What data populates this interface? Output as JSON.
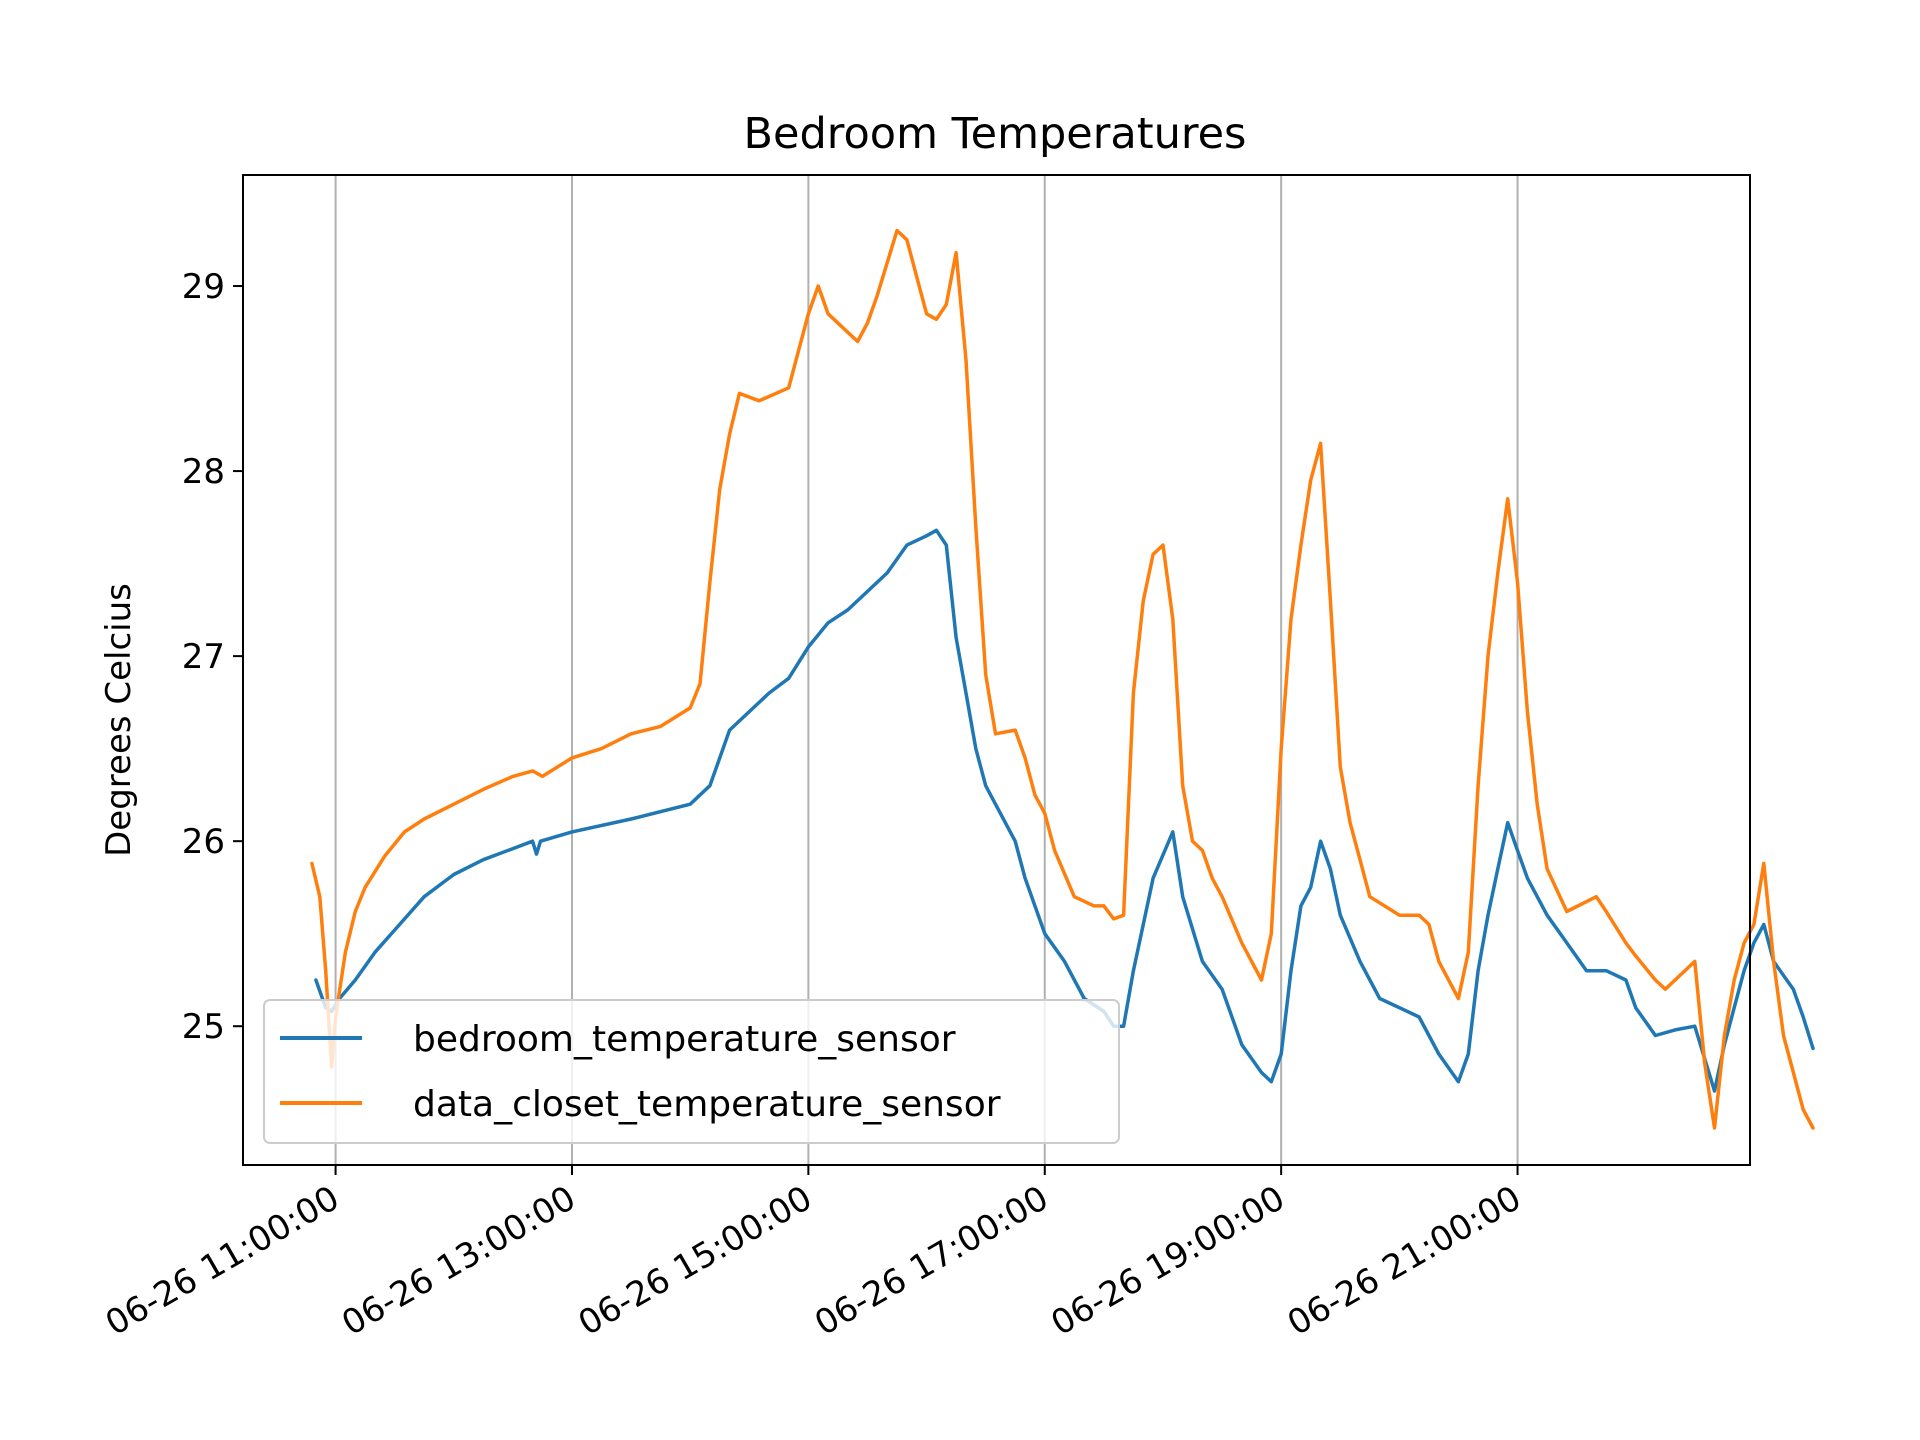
{
  "chart_data": {
    "type": "line",
    "title": "Bedroom Temperatures",
    "xlabel": "",
    "ylabel": "Degrees Celcius",
    "x_tick_labels": [
      "06-26 11:00:00",
      "06-26 13:00:00",
      "06-26 15:00:00",
      "06-26 17:00:00",
      "06-26 19:00:00",
      "06-26 21:00:00"
    ],
    "y_tick_labels": [
      "25",
      "26",
      "27",
      "28",
      "29"
    ],
    "xlim": [
      "06-26 10:13",
      "06-26 22:58"
    ],
    "ylim": [
      24.25,
      29.6
    ],
    "grid": "x-only",
    "legend_position": "lower-left",
    "series": [
      {
        "name": "bedroom_temperature_sensor",
        "color": "#1f77b4",
        "points": [
          [
            "06-26 10:50",
            25.25
          ],
          [
            "06-26 10:55",
            25.1
          ],
          [
            "06-26 10:58",
            25.08
          ],
          [
            "06-26 11:02",
            25.15
          ],
          [
            "06-26 11:10",
            25.25
          ],
          [
            "06-26 11:20",
            25.4
          ],
          [
            "06-26 11:30",
            25.52
          ],
          [
            "06-26 11:45",
            25.7
          ],
          [
            "06-26 12:00",
            25.82
          ],
          [
            "06-26 12:15",
            25.9
          ],
          [
            "06-26 12:30",
            25.96
          ],
          [
            "06-26 12:40",
            26.0
          ],
          [
            "06-26 12:42",
            25.93
          ],
          [
            "06-26 12:44",
            26.0
          ],
          [
            "06-26 13:00",
            26.05
          ],
          [
            "06-26 13:30",
            26.12
          ],
          [
            "06-26 14:00",
            26.2
          ],
          [
            "06-26 14:10",
            26.3
          ],
          [
            "06-26 14:20",
            26.6
          ],
          [
            "06-26 14:30",
            26.7
          ],
          [
            "06-26 14:40",
            26.8
          ],
          [
            "06-26 14:50",
            26.88
          ],
          [
            "06-26 15:00",
            27.05
          ],
          [
            "06-26 15:10",
            27.18
          ],
          [
            "06-26 15:20",
            27.25
          ],
          [
            "06-26 15:30",
            27.35
          ],
          [
            "06-26 15:40",
            27.45
          ],
          [
            "06-26 15:50",
            27.6
          ],
          [
            "06-26 16:00",
            27.65
          ],
          [
            "06-26 16:05",
            27.68
          ],
          [
            "06-26 16:10",
            27.6
          ],
          [
            "06-26 16:15",
            27.1
          ],
          [
            "06-26 16:20",
            26.8
          ],
          [
            "06-26 16:25",
            26.5
          ],
          [
            "06-26 16:30",
            26.3
          ],
          [
            "06-26 16:35",
            26.2
          ],
          [
            "06-26 16:45",
            26.0
          ],
          [
            "06-26 16:50",
            25.8
          ],
          [
            "06-26 17:00",
            25.5
          ],
          [
            "06-26 17:10",
            25.35
          ],
          [
            "06-26 17:20",
            25.15
          ],
          [
            "06-26 17:30",
            25.08
          ],
          [
            "06-26 17:35",
            25.0
          ],
          [
            "06-26 17:40",
            25.0
          ],
          [
            "06-26 17:45",
            25.3
          ],
          [
            "06-26 17:50",
            25.55
          ],
          [
            "06-26 17:55",
            25.8
          ],
          [
            "06-26 18:05",
            26.05
          ],
          [
            "06-26 18:10",
            25.7
          ],
          [
            "06-26 18:20",
            25.35
          ],
          [
            "06-26 18:30",
            25.2
          ],
          [
            "06-26 18:40",
            24.9
          ],
          [
            "06-26 18:50",
            24.75
          ],
          [
            "06-26 18:55",
            24.7
          ],
          [
            "06-26 19:00",
            24.85
          ],
          [
            "06-26 19:05",
            25.3
          ],
          [
            "06-26 19:10",
            25.65
          ],
          [
            "06-26 19:15",
            25.75
          ],
          [
            "06-26 19:20",
            26.0
          ],
          [
            "06-26 19:25",
            25.85
          ],
          [
            "06-26 19:30",
            25.6
          ],
          [
            "06-26 19:40",
            25.35
          ],
          [
            "06-26 19:50",
            25.15
          ],
          [
            "06-26 20:00",
            25.1
          ],
          [
            "06-26 20:10",
            25.05
          ],
          [
            "06-26 20:20",
            24.85
          ],
          [
            "06-26 20:30",
            24.7
          ],
          [
            "06-26 20:35",
            24.85
          ],
          [
            "06-26 20:40",
            25.3
          ],
          [
            "06-26 20:45",
            25.6
          ],
          [
            "06-26 20:50",
            25.85
          ],
          [
            "06-26 20:55",
            26.1
          ],
          [
            "06-26 21:00",
            25.95
          ],
          [
            "06-26 21:05",
            25.8
          ],
          [
            "06-26 21:15",
            25.6
          ],
          [
            "06-26 21:25",
            25.45
          ],
          [
            "06-26 21:35",
            25.3
          ],
          [
            "06-26 21:45",
            25.3
          ],
          [
            "06-26 21:55",
            25.25
          ],
          [
            "06-26 22:00",
            25.1
          ],
          [
            "06-26 22:10",
            24.95
          ],
          [
            "06-26 22:20",
            24.98
          ],
          [
            "06-26 22:30",
            25.0
          ],
          [
            "06-26 22:40",
            24.65
          ],
          [
            "06-26 22:45",
            24.9
          ],
          [
            "06-26 22:50",
            25.1
          ],
          [
            "06-26 22:55",
            25.3
          ],
          [
            "06-26 23:00",
            25.45
          ],
          [
            "06-26 23:05",
            25.55
          ],
          [
            "06-26 23:10",
            25.35
          ],
          [
            "06-26 23:20",
            25.2
          ],
          [
            "06-26 23:25",
            25.05
          ],
          [
            "06-26 23:30",
            24.88
          ]
        ]
      },
      {
        "name": "data_closet_temperature_sensor",
        "color": "#ff7f0e",
        "points": [
          [
            "06-26 10:48",
            25.88
          ],
          [
            "06-26 10:52",
            25.7
          ],
          [
            "06-26 10:55",
            25.3
          ],
          [
            "06-26 10:58",
            24.78
          ],
          [
            "06-26 11:00",
            25.05
          ],
          [
            "06-26 11:05",
            25.4
          ],
          [
            "06-26 11:10",
            25.62
          ],
          [
            "06-26 11:15",
            25.75
          ],
          [
            "06-26 11:25",
            25.92
          ],
          [
            "06-26 11:35",
            26.05
          ],
          [
            "06-26 11:45",
            26.12
          ],
          [
            "06-26 12:00",
            26.2
          ],
          [
            "06-26 12:15",
            26.28
          ],
          [
            "06-26 12:30",
            26.35
          ],
          [
            "06-26 12:40",
            26.38
          ],
          [
            "06-26 12:45",
            26.35
          ],
          [
            "06-26 13:00",
            26.45
          ],
          [
            "06-26 13:15",
            26.5
          ],
          [
            "06-26 13:30",
            26.58
          ],
          [
            "06-26 13:45",
            26.62
          ],
          [
            "06-26 14:00",
            26.72
          ],
          [
            "06-26 14:05",
            26.85
          ],
          [
            "06-26 14:10",
            27.4
          ],
          [
            "06-26 14:15",
            27.9
          ],
          [
            "06-26 14:20",
            28.2
          ],
          [
            "06-26 14:25",
            28.42
          ],
          [
            "06-26 14:35",
            28.38
          ],
          [
            "06-26 14:50",
            28.45
          ],
          [
            "06-26 14:55",
            28.65
          ],
          [
            "06-26 15:00",
            28.85
          ],
          [
            "06-26 15:05",
            29.0
          ],
          [
            "06-26 15:10",
            28.85
          ],
          [
            "06-26 15:20",
            28.75
          ],
          [
            "06-26 15:25",
            28.7
          ],
          [
            "06-26 15:30",
            28.8
          ],
          [
            "06-26 15:35",
            28.95
          ],
          [
            "06-26 15:45",
            29.3
          ],
          [
            "06-26 15:50",
            29.25
          ],
          [
            "06-26 15:55",
            29.05
          ],
          [
            "06-26 16:00",
            28.85
          ],
          [
            "06-26 16:05",
            28.82
          ],
          [
            "06-26 16:10",
            28.9
          ],
          [
            "06-26 16:15",
            29.18
          ],
          [
            "06-26 16:20",
            28.6
          ],
          [
            "06-26 16:25",
            27.7
          ],
          [
            "06-26 16:30",
            26.9
          ],
          [
            "06-26 16:35",
            26.58
          ],
          [
            "06-26 16:45",
            26.6
          ],
          [
            "06-26 16:50",
            26.45
          ],
          [
            "06-26 16:55",
            26.25
          ],
          [
            "06-26 17:00",
            26.15
          ],
          [
            "06-26 17:05",
            25.95
          ],
          [
            "06-26 17:15",
            25.7
          ],
          [
            "06-26 17:25",
            25.65
          ],
          [
            "06-26 17:30",
            25.65
          ],
          [
            "06-26 17:35",
            25.58
          ],
          [
            "06-26 17:40",
            25.6
          ],
          [
            "06-26 17:45",
            26.8
          ],
          [
            "06-26 17:50",
            27.3
          ],
          [
            "06-26 17:55",
            27.55
          ],
          [
            "06-26 18:00",
            27.6
          ],
          [
            "06-26 18:05",
            27.2
          ],
          [
            "06-26 18:10",
            26.3
          ],
          [
            "06-26 18:15",
            26.0
          ],
          [
            "06-26 18:20",
            25.95
          ],
          [
            "06-26 18:25",
            25.8
          ],
          [
            "06-26 18:30",
            25.7
          ],
          [
            "06-26 18:40",
            25.45
          ],
          [
            "06-26 18:50",
            25.25
          ],
          [
            "06-26 18:55",
            25.5
          ],
          [
            "06-26 19:00",
            26.5
          ],
          [
            "06-26 19:05",
            27.2
          ],
          [
            "06-26 19:10",
            27.6
          ],
          [
            "06-26 19:15",
            27.95
          ],
          [
            "06-26 19:20",
            28.15
          ],
          [
            "06-26 19:25",
            27.3
          ],
          [
            "06-26 19:30",
            26.4
          ],
          [
            "06-26 19:35",
            26.1
          ],
          [
            "06-26 19:40",
            25.9
          ],
          [
            "06-26 19:45",
            25.7
          ],
          [
            "06-26 20:00",
            25.6
          ],
          [
            "06-26 20:10",
            25.6
          ],
          [
            "06-26 20:15",
            25.55
          ],
          [
            "06-26 20:20",
            25.35
          ],
          [
            "06-26 20:30",
            25.15
          ],
          [
            "06-26 20:35",
            25.4
          ],
          [
            "06-26 20:40",
            26.3
          ],
          [
            "06-26 20:45",
            27.0
          ],
          [
            "06-26 20:50",
            27.45
          ],
          [
            "06-26 20:55",
            27.85
          ],
          [
            "06-26 21:00",
            27.4
          ],
          [
            "06-26 21:05",
            26.7
          ],
          [
            "06-26 21:10",
            26.2
          ],
          [
            "06-26 21:15",
            25.85
          ],
          [
            "06-26 21:25",
            25.62
          ],
          [
            "06-26 21:40",
            25.7
          ],
          [
            "06-26 21:45",
            25.62
          ],
          [
            "06-26 21:55",
            25.45
          ],
          [
            "06-26 22:00",
            25.38
          ],
          [
            "06-26 22:10",
            25.25
          ],
          [
            "06-26 22:15",
            25.2
          ],
          [
            "06-26 22:20",
            25.25
          ],
          [
            "06-26 22:30",
            25.35
          ],
          [
            "06-26 22:35",
            24.8
          ],
          [
            "06-26 22:40",
            24.45
          ],
          [
            "06-26 22:45",
            24.95
          ],
          [
            "06-26 22:50",
            25.25
          ],
          [
            "06-26 22:55",
            25.45
          ],
          [
            "06-26 23:00",
            25.55
          ],
          [
            "06-26 23:05",
            25.88
          ],
          [
            "06-26 23:10",
            25.35
          ],
          [
            "06-26 23:15",
            24.95
          ],
          [
            "06-26 23:25",
            24.55
          ],
          [
            "06-26 23:30",
            24.45
          ]
        ]
      }
    ]
  }
}
